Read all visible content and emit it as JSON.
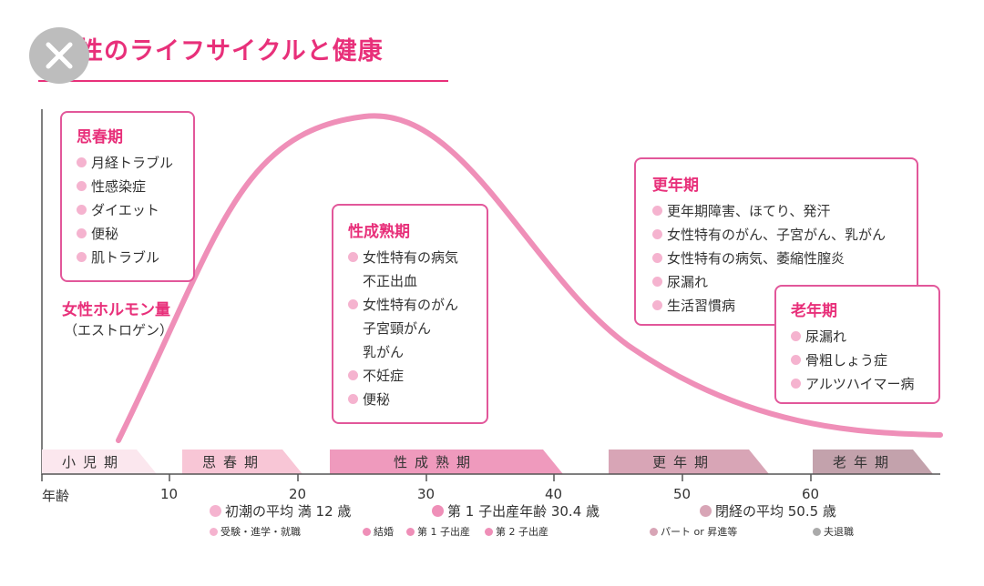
{
  "title": "女性のライフサイクルと健康",
  "close_icon": "close-icon",
  "hormone": {
    "label": "女性ホルモン量",
    "sub": "（エストロゲン）"
  },
  "boxes": {
    "puberty": {
      "title": "思春期",
      "items": [
        "月経トラブル",
        "性感染症",
        "ダイエット",
        "便秘",
        "肌トラブル"
      ]
    },
    "maturity": {
      "title": "性成熟期",
      "items": [
        "女性特有の病気",
        "不正出血",
        "女性特有のがん",
        "子宮頸がん",
        "乳がん",
        "不妊症",
        "便秘"
      ]
    },
    "menopause": {
      "title": "更年期",
      "items": [
        "更年期障害、ほてり、発汗",
        "女性特有のがん、子宮がん、乳がん",
        "女性特有の病気、萎縮性膣炎",
        "尿漏れ",
        "生活習慣病"
      ]
    },
    "old_age": {
      "title": "老年期",
      "items": [
        "尿漏れ",
        "骨粗しょう症",
        "アルツハイマー病"
      ]
    }
  },
  "stages": [
    "小児期",
    "思春期",
    "性成熟期",
    "更年期",
    "老年期"
  ],
  "axis": {
    "label": "年齢",
    "ticks": [
      "10",
      "20",
      "30",
      "40",
      "50",
      "60"
    ]
  },
  "milestones": [
    "初潮の平均 満 12 歳",
    "第 1 子出産年齢 30.4 歳",
    "閉経の平均 50.5 歳"
  ],
  "events": [
    "受験・進学・就職",
    "結婚",
    "第 1 子出産",
    "第 2 子出産",
    "パート or 昇進等",
    "夫退職"
  ],
  "colors": {
    "accent": "#e8307a",
    "curve": "#ef8fb8",
    "box_border": "#e2579a",
    "bullet": "#f5b3cf"
  }
}
